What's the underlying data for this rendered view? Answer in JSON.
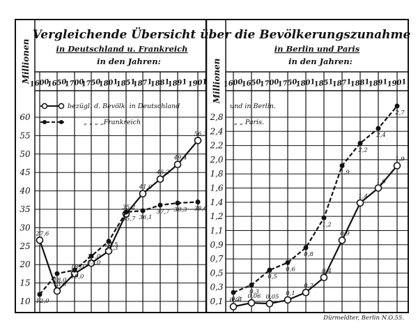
{
  "title": "Vergleichende Übersicht über die Bevölkerungszunahme",
  "left_panel": {
    "subtitle": "in Deutschland u. Frankreich",
    "subtitle2": "in den Jahren:",
    "ylabel": "Millionen"
  },
  "right_panel": {
    "subtitle": "in Berlin und Paris",
    "subtitle2": "in den Jahren:",
    "ylabel": "Millionen"
  },
  "legend": {
    "solid_label": "bezügl. d. Bevölk. in Deutschland",
    "solid_label_right": "und in Berlin.",
    "dashed_label": "„ „ „ „Frankreich",
    "dashed_label_right": "„ „ Paris."
  },
  "credit": "Dürmeldter, Berlin N.O.55.",
  "colors": {
    "ink": "#111111",
    "paper": "#ffffff"
  },
  "chart_data": [
    {
      "type": "line",
      "categories": [
        "1600",
        "1650",
        "1700",
        "1750",
        "1801",
        "1851",
        "1871",
        "1881",
        "1891",
        "1901"
      ],
      "yticks": [
        "10",
        "15",
        "20",
        "25",
        "30",
        "35",
        "40",
        "45",
        "50",
        "55",
        "60"
      ],
      "ylim": [
        10,
        63
      ],
      "grid": true,
      "legend_position": "top-left",
      "series": [
        {
          "style": "solid",
          "values": [
            27.6,
            13.0,
            18.0,
            21.0,
            24.5,
            35.2,
            41.0,
            45.2,
            49.4,
            56.3
          ],
          "labels": [
            "27,6",
            "13,0",
            "18,0",
            "21,0",
            "24,5",
            "35,2",
            "41,0",
            "45,2",
            "49,4",
            "56,3"
          ]
        },
        {
          "style": "dashed",
          "values": [
            12.0,
            18.0,
            19.0,
            23.0,
            27.3,
            35.7,
            36.1,
            37.7,
            38.3,
            38.6
          ],
          "labels": [
            "12,0",
            "18,0",
            "19,0",
            "23,0",
            "27,3",
            "35,7",
            "36,1",
            "37,7",
            "38,3",
            "38,6"
          ]
        }
      ]
    },
    {
      "type": "line",
      "categories": [
        "1600",
        "1650",
        "1700",
        "1750",
        "1801",
        "1851",
        "1871",
        "1881",
        "1891",
        "1901"
      ],
      "yticks": [
        "0,1",
        "0,3",
        "0,5",
        "0,7",
        "0,9",
        "1,1",
        "1,2",
        "1,4",
        "1,6",
        "1,8",
        "2,0",
        "2,2",
        "2,4",
        "2,8"
      ],
      "ylim": [
        0.08,
        2.55
      ],
      "grid": true,
      "series": [
        {
          "style": "solid",
          "values": [
            0.01,
            0.06,
            0.05,
            0.1,
            0.2,
            0.4,
            0.9,
            1.4,
            1.6,
            1.9
          ],
          "labels": [
            "0,01",
            "0,06",
            "0,05",
            "0,1",
            "0,2",
            "0,4",
            "0,9",
            "1,4",
            "1,6",
            "1,9"
          ]
        },
        {
          "style": "dashed",
          "values": [
            0.2,
            0.3,
            0.5,
            0.6,
            0.8,
            1.2,
            1.9,
            2.2,
            2.4,
            2.7
          ],
          "labels": [
            "0,2",
            "0,3",
            "0,5",
            "0,6",
            "0,8",
            "1,2",
            "1,9",
            "2,2",
            "2,4",
            "2,7"
          ]
        }
      ]
    }
  ]
}
